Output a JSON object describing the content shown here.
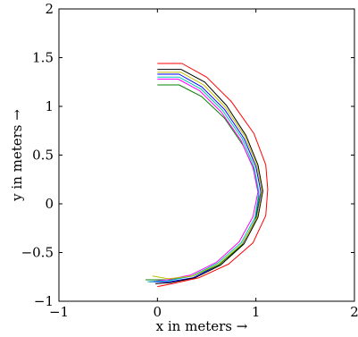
{
  "chart_data": {
    "type": "line",
    "title": "",
    "xlabel": "x in meters →",
    "ylabel": "y in meters →",
    "xlim": [
      -1,
      2
    ],
    "ylim": [
      -1,
      2
    ],
    "xticks": [
      -1,
      0,
      1,
      2
    ],
    "yticks": [
      -1,
      -0.5,
      0,
      0.5,
      1,
      1.5,
      2
    ],
    "xtick_labels": [
      "−1",
      "0",
      "1",
      "2"
    ],
    "ytick_labels": [
      "−1",
      "−0.5",
      "0",
      "0.5",
      "1",
      "1.5",
      "2"
    ],
    "grid": false,
    "series": [
      {
        "color": "#ff0000",
        "x": [
          0.0,
          0.25,
          0.5,
          0.75,
          0.98,
          1.1,
          1.12,
          1.1,
          0.97,
          0.72,
          0.42,
          0.15,
          0.0
        ],
        "y": [
          1.44,
          1.44,
          1.3,
          1.05,
          0.72,
          0.4,
          0.15,
          -0.12,
          -0.4,
          -0.62,
          -0.76,
          -0.82,
          -0.85
        ]
      },
      {
        "color": "#0000ff",
        "x": [
          0.0,
          0.22,
          0.45,
          0.68,
          0.88,
          1.0,
          1.05,
          1.0,
          0.86,
          0.62,
          0.36,
          0.12,
          -0.08
        ],
        "y": [
          1.33,
          1.33,
          1.2,
          0.97,
          0.67,
          0.38,
          0.12,
          -0.15,
          -0.42,
          -0.63,
          -0.76,
          -0.8,
          -0.8
        ]
      },
      {
        "color": "#008000",
        "x": [
          0.0,
          0.22,
          0.45,
          0.68,
          0.87,
          0.99,
          1.03,
          0.99,
          0.85,
          0.62,
          0.36,
          0.12,
          -0.12
        ],
        "y": [
          1.22,
          1.22,
          1.1,
          0.88,
          0.6,
          0.33,
          0.08,
          -0.18,
          -0.43,
          -0.63,
          -0.74,
          -0.78,
          -0.78
        ]
      },
      {
        "color": "#000000",
        "x": [
          0.0,
          0.24,
          0.48,
          0.7,
          0.9,
          1.02,
          1.07,
          1.02,
          0.88,
          0.64,
          0.38,
          0.13,
          -0.02
        ],
        "y": [
          1.38,
          1.38,
          1.25,
          1.01,
          0.7,
          0.4,
          0.13,
          -0.14,
          -0.41,
          -0.63,
          -0.76,
          -0.81,
          -0.82
        ]
      },
      {
        "color": "#ff00ff",
        "x": [
          0.0,
          0.21,
          0.43,
          0.65,
          0.85,
          0.97,
          1.02,
          0.97,
          0.83,
          0.6,
          0.34,
          0.1,
          -0.08
        ],
        "y": [
          1.28,
          1.28,
          1.16,
          0.94,
          0.65,
          0.37,
          0.12,
          -0.13,
          -0.39,
          -0.6,
          -0.73,
          -0.78,
          -0.8
        ]
      },
      {
        "color": "#00bfbf",
        "x": [
          0.0,
          0.22,
          0.44,
          0.66,
          0.86,
          0.98,
          1.03,
          0.99,
          0.85,
          0.61,
          0.35,
          0.11,
          -0.1
        ],
        "y": [
          1.3,
          1.3,
          1.18,
          0.96,
          0.67,
          0.38,
          0.12,
          -0.14,
          -0.4,
          -0.61,
          -0.74,
          -0.79,
          -0.8
        ]
      },
      {
        "color": "#bfbf00",
        "x": [
          0.0,
          0.24,
          0.47,
          0.69,
          0.89,
          1.01,
          1.06,
          1.01,
          0.86,
          0.62,
          0.36,
          0.11,
          -0.05
        ],
        "y": [
          1.35,
          1.35,
          1.22,
          0.99,
          0.69,
          0.39,
          0.13,
          -0.14,
          -0.41,
          -0.62,
          -0.74,
          -0.77,
          -0.74
        ]
      }
    ]
  }
}
